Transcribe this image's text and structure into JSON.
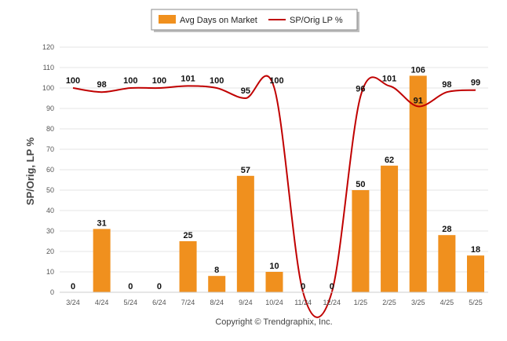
{
  "chart_data": {
    "type": "bar",
    "categories": [
      "3/24",
      "4/24",
      "5/24",
      "6/24",
      "7/24",
      "8/24",
      "9/24",
      "10/24",
      "11/24",
      "12/24",
      "1/25",
      "2/25",
      "3/25",
      "4/25",
      "5/25"
    ],
    "series": [
      {
        "name": "Avg Days on Market",
        "type": "bar",
        "color": "#f0901e",
        "values": [
          0,
          31,
          0,
          0,
          25,
          8,
          57,
          10,
          0,
          0,
          50,
          62,
          106,
          28,
          18
        ]
      },
      {
        "name": "SP/Orig LP %",
        "type": "line",
        "color": "#c00000",
        "values": [
          100,
          98,
          100,
          100,
          101,
          100,
          95,
          100,
          0,
          0,
          96,
          101,
          91,
          98,
          99
        ]
      }
    ],
    "ylabel": "SP/Orig, LP %",
    "ylim": [
      0,
      120
    ],
    "yticks": [
      0,
      10,
      20,
      30,
      40,
      50,
      60,
      70,
      80,
      90,
      100,
      110,
      120
    ],
    "grid": true,
    "legend_placement": "top-center"
  },
  "footer": {
    "copyright": "Copyright © Trendgraphix, Inc."
  }
}
